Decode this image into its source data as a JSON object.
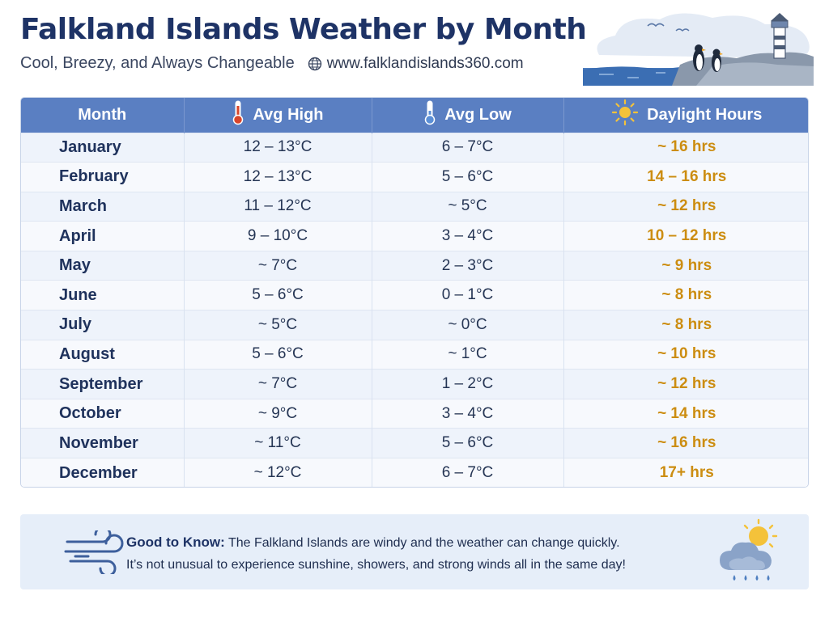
{
  "header": {
    "title": "Falkland Islands Weather by Month",
    "subtitle": "Cool, Breezy, and Always Changeable",
    "website": "www.falklandislands360.com"
  },
  "chart_data": {
    "type": "table",
    "columns": [
      "Month",
      "Avg High",
      "Avg Low",
      "Daylight Hours"
    ],
    "rows": [
      [
        "January",
        "12 – 13°C",
        "6 – 7°C",
        "~ 16 hrs"
      ],
      [
        "February",
        "12 – 13°C",
        "5 – 6°C",
        "14 – 16 hrs"
      ],
      [
        "March",
        "11 – 12°C",
        "~ 5°C",
        "~ 12 hrs"
      ],
      [
        "April",
        "9 – 10°C",
        "3 – 4°C",
        "10 – 12 hrs"
      ],
      [
        "May",
        "~ 7°C",
        "2 – 3°C",
        "~ 9 hrs"
      ],
      [
        "June",
        "5 – 6°C",
        "0 – 1°C",
        "~ 8 hrs"
      ],
      [
        "July",
        "~ 5°C",
        "~ 0°C",
        "~ 8 hrs"
      ],
      [
        "August",
        "5 – 6°C",
        "~ 1°C",
        "~ 10 hrs"
      ],
      [
        "September",
        "~ 7°C",
        "1 – 2°C",
        "~ 12 hrs"
      ],
      [
        "October",
        "~ 9°C",
        "3 – 4°C",
        "~ 14 hrs"
      ],
      [
        "November",
        "~ 11°C",
        "5 – 6°C",
        "~ 16 hrs"
      ],
      [
        "December",
        "~ 12°C",
        "6 – 7°C",
        "17+ hrs"
      ]
    ],
    "colors": {
      "header_bg": "#5a7fc2",
      "daylight_text": "#cc8d11",
      "thermometer_high": "#d9452b",
      "thermometer_low": "#5b8fd6",
      "sun": "#f4c23a"
    }
  },
  "note": {
    "label": "Good to Know:",
    "line1": "The Falkland Islands are windy and the weather can change quickly.",
    "line2": "It’s not unusual to experience sunshine, showers, and strong winds all in the same day!"
  },
  "icons": {
    "globe": "globe-icon",
    "high": "thermometer-hot-icon",
    "low": "thermometer-cold-icon",
    "daylight": "sun-icon",
    "wind": "wind-icon",
    "weather": "sun-cloud-rain-icon",
    "scene": "penguins-lighthouse-illustration"
  }
}
